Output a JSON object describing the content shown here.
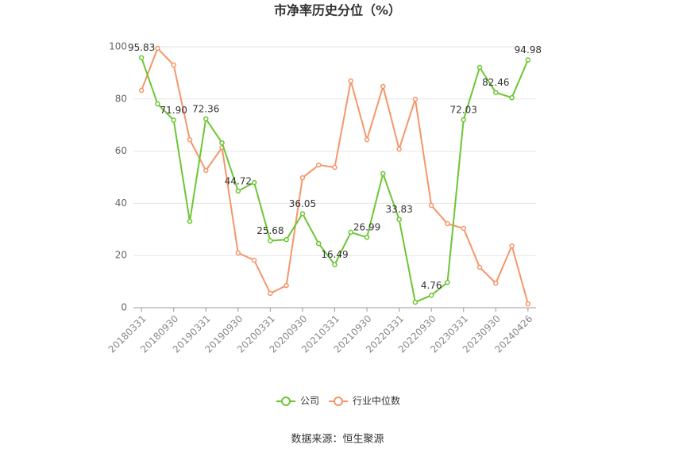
{
  "chart_data": {
    "type": "line",
    "title": "市净率历史分位（%）",
    "source": "数据来源：恒生聚源",
    "categories": [
      "20180331",
      null,
      "20180930",
      null,
      "20190331",
      null,
      "20190930",
      null,
      "20200331",
      null,
      "20200930",
      null,
      "20210331",
      null,
      "20210930",
      null,
      "20220331",
      null,
      "20220930",
      null,
      "20230331",
      null,
      "20230930",
      null,
      "20240426"
    ],
    "series": [
      {
        "name": "公司",
        "color": "#6cc633",
        "values": [
          95.83,
          78.1,
          71.9,
          33.1,
          72.36,
          63.2,
          44.72,
          48.0,
          25.68,
          26.1,
          36.05,
          24.6,
          16.49,
          28.9,
          26.99,
          51.4,
          33.83,
          2.1,
          4.76,
          9.7,
          72.03,
          92.1,
          82.46,
          80.5,
          94.98
        ],
        "value_labels": [
          "95.83",
          null,
          "71.90",
          null,
          "72.36",
          null,
          "44.72",
          null,
          "25.68",
          null,
          "36.05",
          null,
          "16.49",
          null,
          "26.99",
          null,
          "33.83",
          null,
          "4.76",
          null,
          "72.03",
          null,
          "82.46",
          null,
          "94.98"
        ]
      },
      {
        "name": "行业中位数",
        "color": "#f5966a",
        "values": [
          83.3,
          99.4,
          93.0,
          64.4,
          52.6,
          61.4,
          21.0,
          18.2,
          5.5,
          8.5,
          49.8,
          54.7,
          53.8,
          86.9,
          64.4,
          84.8,
          60.8,
          79.9,
          39.2,
          32.2,
          30.4,
          15.5,
          9.4,
          23.7,
          1.5
        ]
      }
    ],
    "ylim": [
      0,
      100
    ],
    "yticks": [
      0,
      20,
      40,
      60,
      80,
      100
    ],
    "grid": true,
    "legend": "bottom"
  }
}
